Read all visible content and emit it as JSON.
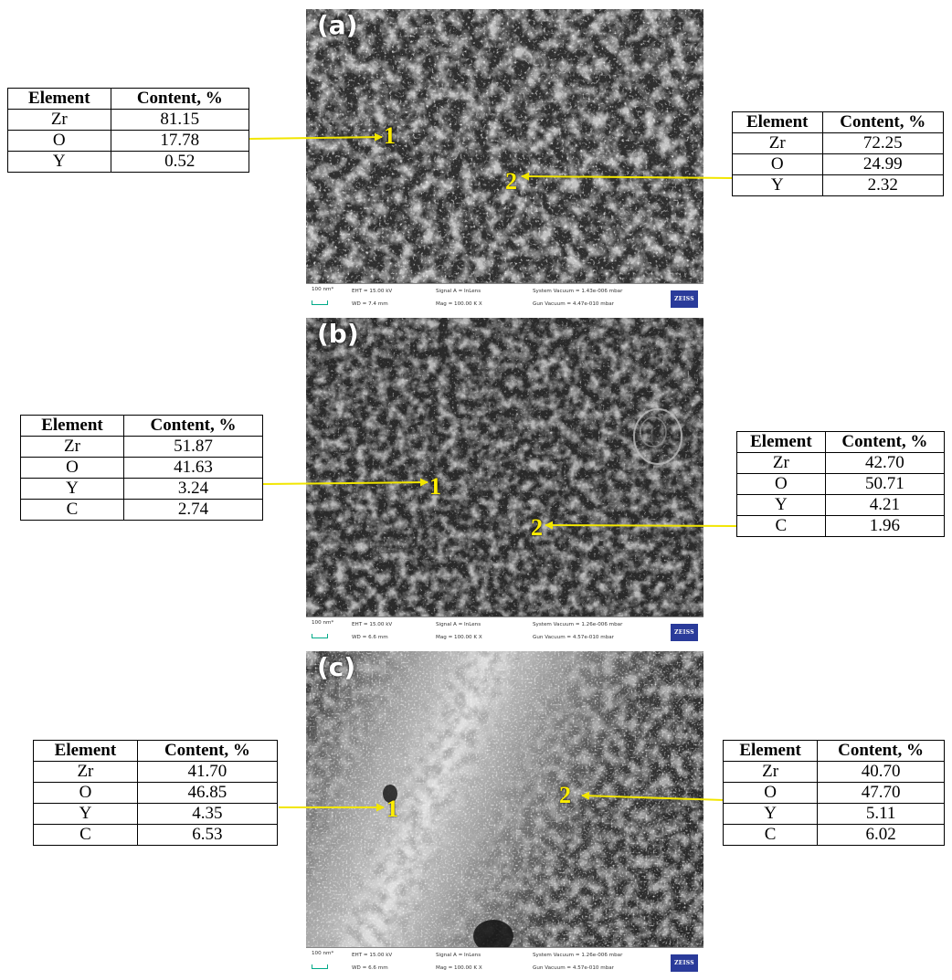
{
  "panels": [
    {
      "letter": "(a)",
      "points": [
        "1",
        "2"
      ],
      "info": {
        "scale": "100 nm*",
        "eht": "EHT = 15.00 kV",
        "wd": "WD = 7.4 mm",
        "signal": "Signal A = InLens",
        "mag": "Mag = 100.00 K X",
        "system_vacuum": "System Vacuum = 1.43e-006 mbar",
        "gun_vacuum": "Gun Vacuum = 4.47e-010 mbar",
        "logo": "ZEISS"
      },
      "tables": [
        {
          "headers": [
            "Element",
            "Content, %"
          ],
          "rows": [
            [
              "Zr",
              "81.15"
            ],
            [
              "O",
              "17.78"
            ],
            [
              "Y",
              "0.52"
            ]
          ]
        },
        {
          "headers": [
            "Element",
            "Content, %"
          ],
          "rows": [
            [
              "Zr",
              "72.25"
            ],
            [
              "O",
              "24.99"
            ],
            [
              "Y",
              "2.32"
            ]
          ]
        }
      ]
    },
    {
      "letter": "(b)",
      "points": [
        "1",
        "2"
      ],
      "info": {
        "scale": "100 nm*",
        "eht": "EHT = 15.00 kV",
        "wd": "WD = 6.6 mm",
        "signal": "Signal A = InLens",
        "mag": "Mag = 100.00 K X",
        "system_vacuum": "System Vacuum = 1.26e-006 mbar",
        "gun_vacuum": "Gun Vacuum = 4.57e-010 mbar",
        "logo": "ZEISS"
      },
      "tables": [
        {
          "headers": [
            "Element",
            "Content, %"
          ],
          "rows": [
            [
              "Zr",
              "51.87"
            ],
            [
              "O",
              "41.63"
            ],
            [
              "Y",
              "3.24"
            ],
            [
              "C",
              "2.74"
            ]
          ]
        },
        {
          "headers": [
            "Element",
            "Content, %"
          ],
          "rows": [
            [
              "Zr",
              "42.70"
            ],
            [
              "O",
              "50.71"
            ],
            [
              "Y",
              "4.21"
            ],
            [
              "C",
              "1.96"
            ]
          ]
        }
      ]
    },
    {
      "letter": "(c)",
      "points": [
        "1",
        "2"
      ],
      "info": {
        "scale": "100 nm*",
        "eht": "EHT = 15.00 kV",
        "wd": "WD = 6.6 mm",
        "signal": "Signal A = InLens",
        "mag": "Mag = 100.00 K X",
        "system_vacuum": "System Vacuum = 1.26e-006 mbar",
        "gun_vacuum": "Gun Vacuum = 4.57e-010 mbar",
        "logo": "ZEISS"
      },
      "tables": [
        {
          "headers": [
            "Element",
            "Content, %"
          ],
          "rows": [
            [
              "Zr",
              "41.70"
            ],
            [
              "O",
              "46.85"
            ],
            [
              "Y",
              "4.35"
            ],
            [
              "C",
              "6.53"
            ]
          ]
        },
        {
          "headers": [
            "Element",
            "Content, %"
          ],
          "rows": [
            [
              "Zr",
              "40.70"
            ],
            [
              "O",
              "47.70"
            ],
            [
              "Y",
              "5.11"
            ],
            [
              "C",
              "6.02"
            ]
          ]
        }
      ]
    }
  ],
  "colors": {
    "arrow": "#f2e600",
    "label": "#ffee00",
    "logo_bg": "#2a3b9a"
  }
}
